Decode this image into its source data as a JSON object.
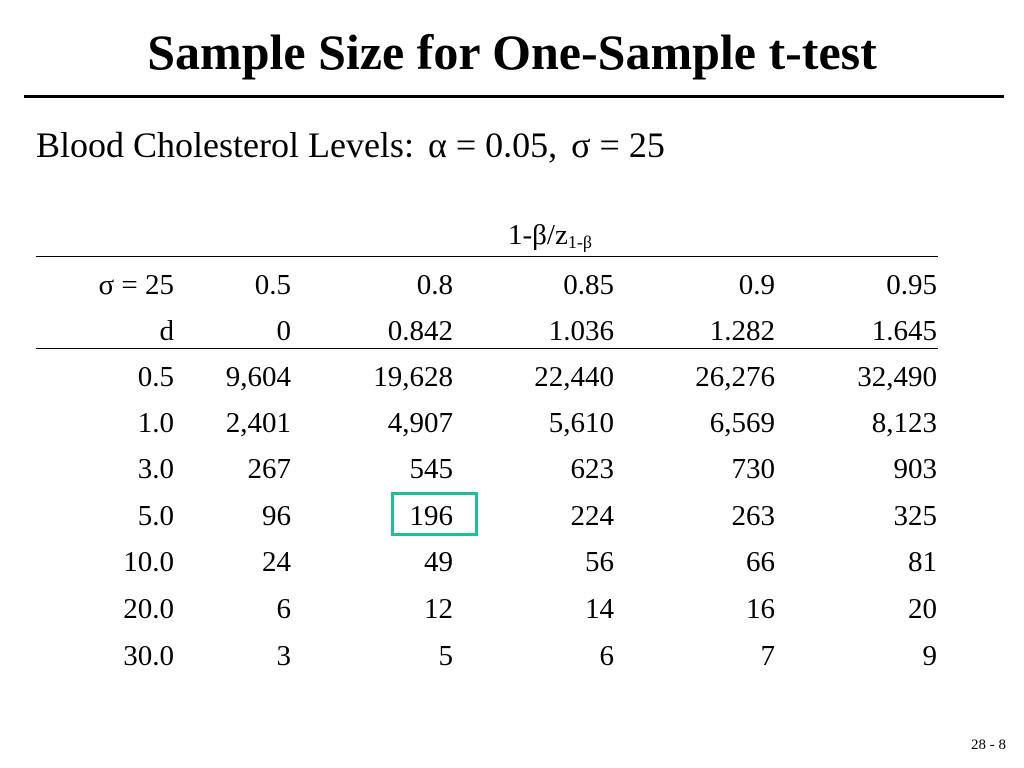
{
  "slide": {
    "title": "Sample Size for One-Sample t-test",
    "subtitle_label": "Blood Cholesterol Levels:",
    "subtitle_alpha": "α = 0.05,",
    "subtitle_sigma": "σ = 25",
    "page_number": "28 - 8"
  },
  "table": {
    "group_header_prefix": "1-β/z",
    "group_header_sub": "1-β",
    "header_rows": [
      [
        "σ = 25",
        "0.5",
        "0.8",
        "0.85",
        "0.9",
        "0.95"
      ],
      [
        "d",
        "0",
        "0.842",
        "1.036",
        "1.282",
        "1.645"
      ]
    ],
    "rows": [
      [
        "0.5",
        "9,604",
        "19,628",
        "22,440",
        "26,276",
        "32,490"
      ],
      [
        "1.0",
        "2,401",
        "4,907",
        "5,610",
        "6,569",
        "8,123"
      ],
      [
        "3.0",
        "267",
        "545",
        "623",
        "730",
        "903"
      ],
      [
        "5.0",
        "96",
        "196",
        "224",
        "263",
        "325"
      ],
      [
        "10.0",
        "24",
        "49",
        "56",
        "66",
        "81"
      ],
      [
        "20.0",
        "6",
        "12",
        "14",
        "16",
        "20"
      ],
      [
        "30.0",
        "3",
        "5",
        "6",
        "7",
        "9"
      ]
    ],
    "highlight": {
      "row": 3,
      "col": 2,
      "color": "#1fbf96"
    }
  }
}
